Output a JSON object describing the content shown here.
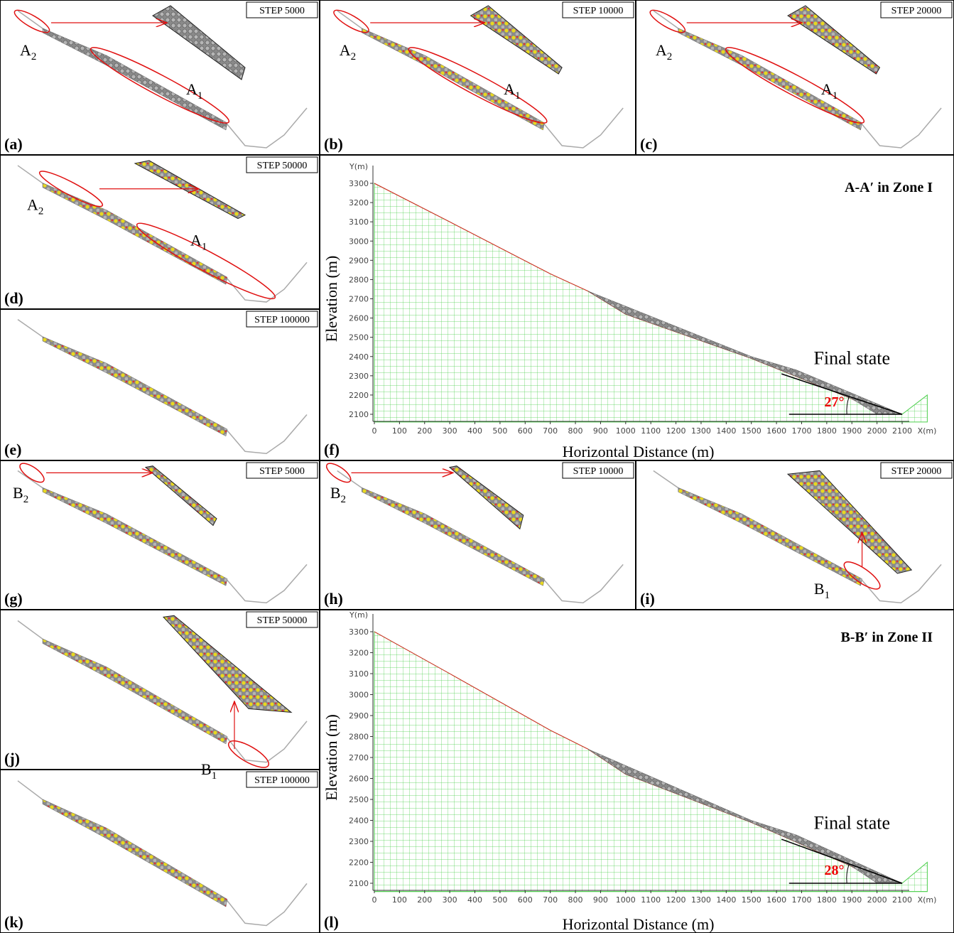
{
  "panels": [
    {
      "label": "(a)",
      "step": "STEP 5000",
      "zone_labels": [
        {
          "letter": "A",
          "sub": "2"
        },
        {
          "letter": "A",
          "sub": "1"
        }
      ]
    },
    {
      "label": "(b)",
      "step": "STEP 10000",
      "zone_labels": [
        {
          "letter": "A",
          "sub": "2"
        },
        {
          "letter": "A",
          "sub": "1"
        }
      ]
    },
    {
      "label": "(c)",
      "step": "STEP 20000",
      "zone_labels": [
        {
          "letter": "A",
          "sub": "2"
        },
        {
          "letter": "A",
          "sub": "1"
        }
      ]
    },
    {
      "label": "(d)",
      "step": "STEP 50000",
      "zone_labels": [
        {
          "letter": "A",
          "sub": "2"
        },
        {
          "letter": "A",
          "sub": "1"
        }
      ]
    },
    {
      "label": "(e)",
      "step": "STEP 100000"
    },
    {
      "label": "(f)",
      "title": "A-A′ in Zone I",
      "y_unit": "Y(m)",
      "x_unit": "X(m)",
      "y_label": "Elevation (m)",
      "x_label": "Horizontal Distance (m)",
      "note": "Final state",
      "angle": "27°",
      "yticks": [
        2100,
        2200,
        2300,
        2400,
        2500,
        2600,
        2700,
        2800,
        2900,
        3000,
        3100,
        3200,
        3300
      ],
      "xticks": [
        0,
        100,
        200,
        300,
        400,
        500,
        600,
        700,
        800,
        900,
        1000,
        1100,
        1200,
        1300,
        1400,
        1500,
        1600,
        1700,
        1800,
        1900,
        2000,
        2100
      ]
    },
    {
      "label": "(g)",
      "step": "STEP 5000",
      "zone_labels": [
        {
          "letter": "B",
          "sub": "2"
        }
      ]
    },
    {
      "label": "(h)",
      "step": "STEP 10000",
      "zone_labels": [
        {
          "letter": "B",
          "sub": "2"
        }
      ]
    },
    {
      "label": "(i)",
      "step": "STEP 20000",
      "zone_labels": [
        {
          "letter": "B",
          "sub": "1"
        }
      ]
    },
    {
      "label": "(j)",
      "step": "STEP 50000",
      "zone_labels": [
        {
          "letter": "B",
          "sub": "1"
        }
      ]
    },
    {
      "label": "(k)",
      "step": "STEP 100000"
    },
    {
      "label": "(l)",
      "title": "B-B′ in Zone II",
      "y_unit": "Y(m)",
      "x_unit": "X(m)",
      "y_label": "Elevation (m)",
      "x_label": "Horizontal Distance (m)",
      "note": "Final state",
      "angle": "28°",
      "yticks": [
        2100,
        2200,
        2300,
        2400,
        2500,
        2600,
        2700,
        2800,
        2900,
        3000,
        3100,
        3200,
        3300
      ],
      "xticks": [
        0,
        100,
        200,
        300,
        400,
        500,
        600,
        700,
        800,
        900,
        1000,
        1100,
        1200,
        1300,
        1400,
        1500,
        1600,
        1700,
        1800,
        1900,
        2000,
        2100
      ]
    }
  ]
}
